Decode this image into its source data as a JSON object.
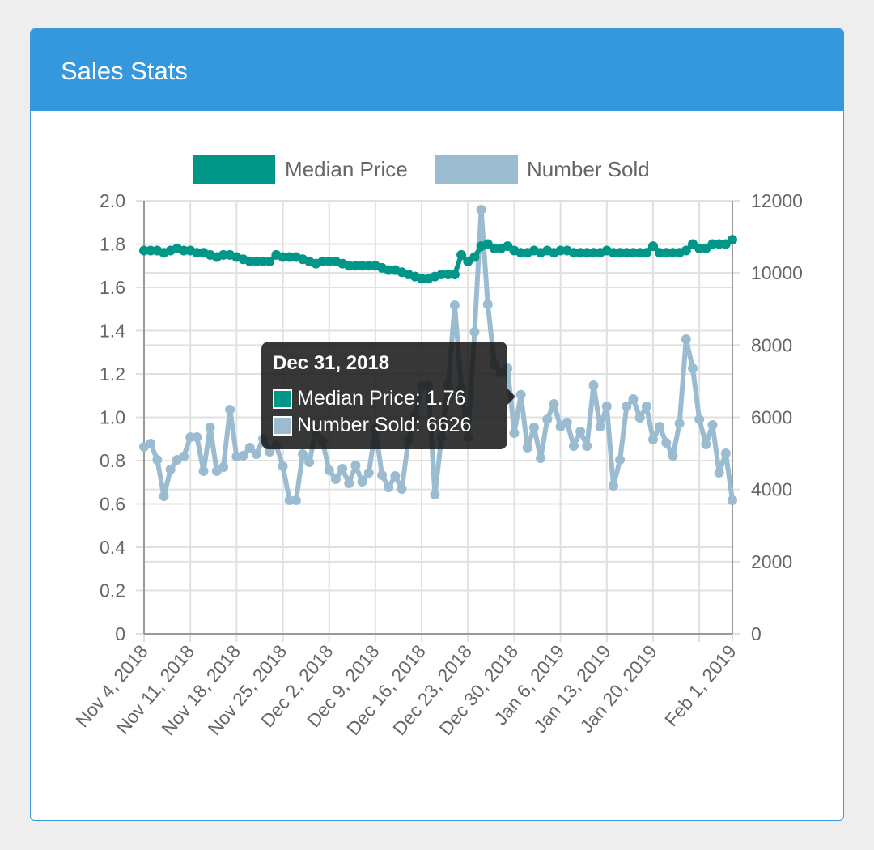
{
  "card": {
    "title": "Sales Stats"
  },
  "colors": {
    "header": "#3598dc",
    "median_price": "#009688",
    "number_sold": "#9bbcd0"
  },
  "tooltip": {
    "title": "Dec 31, 2018",
    "median_label": "Median Price: 1.76",
    "sold_label": "Number Sold: 6626"
  },
  "chart_data": {
    "type": "line",
    "title": "",
    "legend": [
      "Median Price",
      "Number Sold"
    ],
    "legend_position": "top",
    "x_start": "Nov 4, 2018",
    "x_end": "Feb 1, 2019",
    "x_tick_labels": [
      "Nov 4, 2018",
      "Nov 11, 2018",
      "Nov 18, 2018",
      "Nov 25, 2018",
      "Dec 2, 2018",
      "Dec 9, 2018",
      "Dec 16, 2018",
      "Dec 23, 2018",
      "Dec 30, 2018",
      "Jan 6, 2019",
      "Jan 13, 2019",
      "Jan 20, 2019",
      "Feb 1, 2019"
    ],
    "x_tick_days": [
      0,
      7,
      14,
      21,
      28,
      35,
      42,
      49,
      56,
      63,
      70,
      77,
      89
    ],
    "y_left": {
      "min": 0,
      "max": 2.0,
      "ticks": [
        "0",
        "0.2",
        "0.4",
        "0.6",
        "0.8",
        "1.0",
        "1.2",
        "1.4",
        "1.6",
        "1.8",
        "2.0"
      ]
    },
    "y_right": {
      "min": 0,
      "max": 12000,
      "ticks": [
        "0",
        "2000",
        "4000",
        "6000",
        "8000",
        "10000",
        "12000"
      ]
    },
    "grid": true,
    "series": [
      {
        "name": "Median Price",
        "axis": "left",
        "values": [
          1.77,
          1.77,
          1.77,
          1.76,
          1.77,
          1.78,
          1.77,
          1.77,
          1.76,
          1.76,
          1.75,
          1.74,
          1.75,
          1.75,
          1.74,
          1.73,
          1.72,
          1.72,
          1.72,
          1.72,
          1.75,
          1.74,
          1.74,
          1.74,
          1.73,
          1.72,
          1.71,
          1.72,
          1.72,
          1.72,
          1.71,
          1.7,
          1.7,
          1.7,
          1.7,
          1.7,
          1.69,
          1.68,
          1.68,
          1.67,
          1.66,
          1.65,
          1.64,
          1.64,
          1.65,
          1.66,
          1.66,
          1.66,
          1.75,
          1.72,
          1.74,
          1.79,
          1.8,
          1.78,
          1.78,
          1.79,
          1.77,
          1.76,
          1.76,
          1.77,
          1.76,
          1.77,
          1.76,
          1.77,
          1.77,
          1.76,
          1.76,
          1.76,
          1.76,
          1.76,
          1.77,
          1.76,
          1.76,
          1.76,
          1.76,
          1.76,
          1.76,
          1.79,
          1.76,
          1.76,
          1.76,
          1.76,
          1.77,
          1.8,
          1.78,
          1.78,
          1.8,
          1.8,
          1.8,
          1.82
        ]
      },
      {
        "name": "Number Sold",
        "axis": "right",
        "values": [
          5181,
          5271,
          4822,
          3813,
          4553,
          4822,
          4912,
          5450,
          5450,
          4508,
          5720,
          4508,
          4621,
          6213,
          4912,
          4935,
          5159,
          4979,
          5406,
          5047,
          5226,
          4643,
          3701,
          3701,
          4979,
          4755,
          5630,
          5338,
          4531,
          4284,
          4576,
          4172,
          4665,
          4217,
          4464,
          5675,
          4396,
          4060,
          4374,
          4015,
          5383,
          6056,
          6864,
          6864,
          3858,
          5450,
          6886,
          9107,
          6796,
          5450,
          8366,
          11753,
          9129,
          7469,
          7245,
          7357,
          5563,
          6626,
          5159,
          5720,
          4867,
          5944,
          6370,
          5742,
          5854,
          5204,
          5608,
          5204,
          6886,
          5742,
          6303,
          4105,
          4822,
          6303,
          6505,
          5989,
          6303,
          5383,
          5742,
          5293,
          4935,
          5832,
          8165,
          7357,
          5944,
          5249,
          5787,
          4464,
          5002,
          3701
        ]
      }
    ]
  }
}
